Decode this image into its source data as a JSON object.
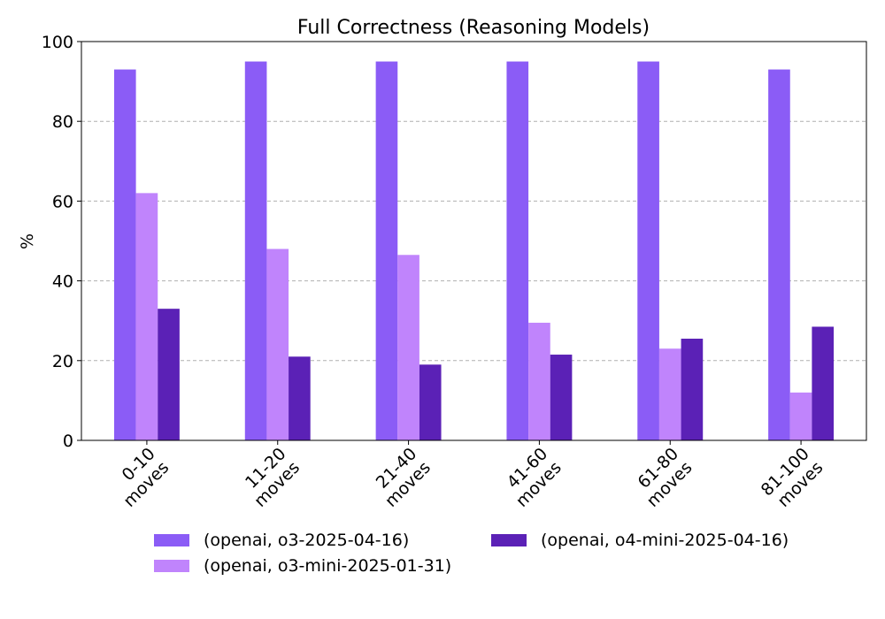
{
  "chart_data": {
    "type": "bar",
    "title": "Full Correctness (Reasoning Models)",
    "xlabel": "",
    "ylabel": "%",
    "ylim": [
      0,
      100
    ],
    "yticks": [
      0,
      20,
      40,
      60,
      80,
      100
    ],
    "grid": "horizontal dashed",
    "legend_position": "bottom",
    "categories": [
      [
        "0-10",
        "moves"
      ],
      [
        "11-20",
        "moves"
      ],
      [
        "21-40",
        "moves"
      ],
      [
        "41-60",
        "moves"
      ],
      [
        "61-80",
        "moves"
      ],
      [
        "81-100",
        "moves"
      ]
    ],
    "series": [
      {
        "name": "(openai, o3-2025-04-16)",
        "color": "#8b5cf6",
        "values": [
          93,
          95,
          95,
          95,
          95,
          93
        ]
      },
      {
        "name": "(openai, o3-mini-2025-01-31)",
        "color": "#c084fc",
        "values": [
          62,
          48,
          46.5,
          29.5,
          23,
          12
        ]
      },
      {
        "name": "(openai, o4-mini-2025-04-16)",
        "color": "#5b21b6",
        "values": [
          33,
          21,
          19,
          21.5,
          25.5,
          28.5
        ]
      }
    ]
  }
}
